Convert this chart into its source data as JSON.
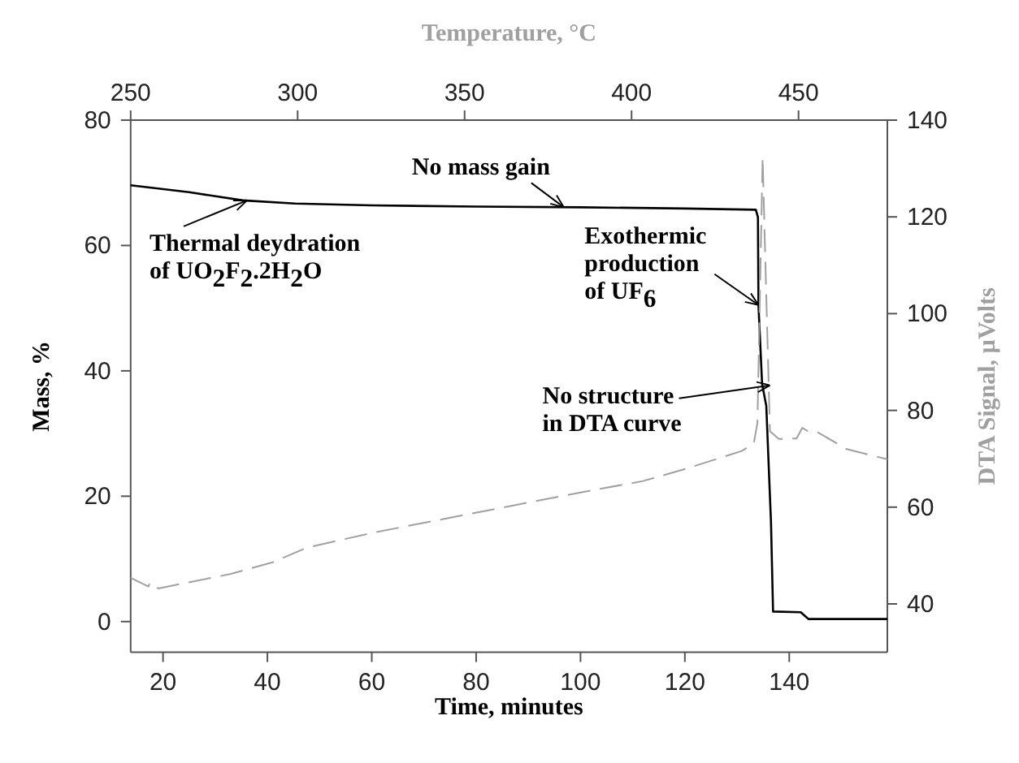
{
  "chart_data": {
    "type": "line",
    "xlabel": "Time, minutes",
    "ylabel": "Mass, %",
    "y2label": "DTA Signal, µVolts",
    "x2label": "Temperature, °C",
    "xlim": [
      13.8,
      158.8
    ],
    "xticks": [
      20,
      40,
      60,
      80,
      100,
      120,
      140
    ],
    "x2lim": [
      250,
      476.6
    ],
    "x2ticks": [
      250,
      300,
      350,
      400,
      450
    ],
    "ylim": [
      -4.9,
      80
    ],
    "yticks": [
      0,
      20,
      40,
      60,
      80
    ],
    "y2lim": [
      30,
      140
    ],
    "y2ticks": [
      40,
      60,
      80,
      100,
      120,
      140
    ],
    "grid": false,
    "series": [
      {
        "color": "#000000",
        "line_style": "solid",
        "x": [
          13.8,
          25,
          35.3,
          45.3,
          60,
          80,
          100,
          120,
          133.6,
          134.0,
          134.1,
          134.8,
          135.6,
          136.5,
          136.9,
          142.2,
          143.7,
          158.8
        ],
        "values": [
          69.6,
          68.5,
          67.2,
          66.7,
          66.4,
          66.2,
          66.1,
          65.9,
          65.7,
          64.5,
          50.5,
          37.9,
          34.4,
          15.9,
          1.6,
          1.5,
          0.4,
          0.4
        ]
      },
      {
        "color": "#a0a0a0",
        "axis": "y2",
        "line_style": "dashed",
        "x": [
          13.8,
          17.2,
          17.5,
          19.1,
          33,
          41,
          47.5,
          59.7,
          79.7,
          99.8,
          112,
          119.8,
          130.9,
          133.2,
          133.9,
          134.9,
          135.3,
          136.3,
          138,
          141.4,
          142.5,
          143.7,
          145.4,
          151,
          158.8
        ],
        "values": [
          45.4,
          43.6,
          44.4,
          43.2,
          46.2,
          48.6,
          51.6,
          54.6,
          58.8,
          63.0,
          65.4,
          67.8,
          71.6,
          73.2,
          77.4,
          132.3,
          115.6,
          75.7,
          74.1,
          74.2,
          76.4,
          75.6,
          75.5,
          72.0,
          69.9
        ]
      }
    ],
    "annotations": [
      {
        "text": "No mass gain",
        "x": 96.8,
        "y": 66.1
      },
      {
        "text": "Thermal deydration\nof UO$_{2}$F$_{2}$.2H$_{2}$O",
        "x": 36.1,
        "y": 67.2
      },
      {
        "text": "Exothermic\nproduction\nof UF$_{6}$",
        "x": 134.1,
        "y": 50.5
      },
      {
        "text": "No structure\nin DTA curve",
        "x": 136.3,
        "y": 37.7
      }
    ]
  }
}
